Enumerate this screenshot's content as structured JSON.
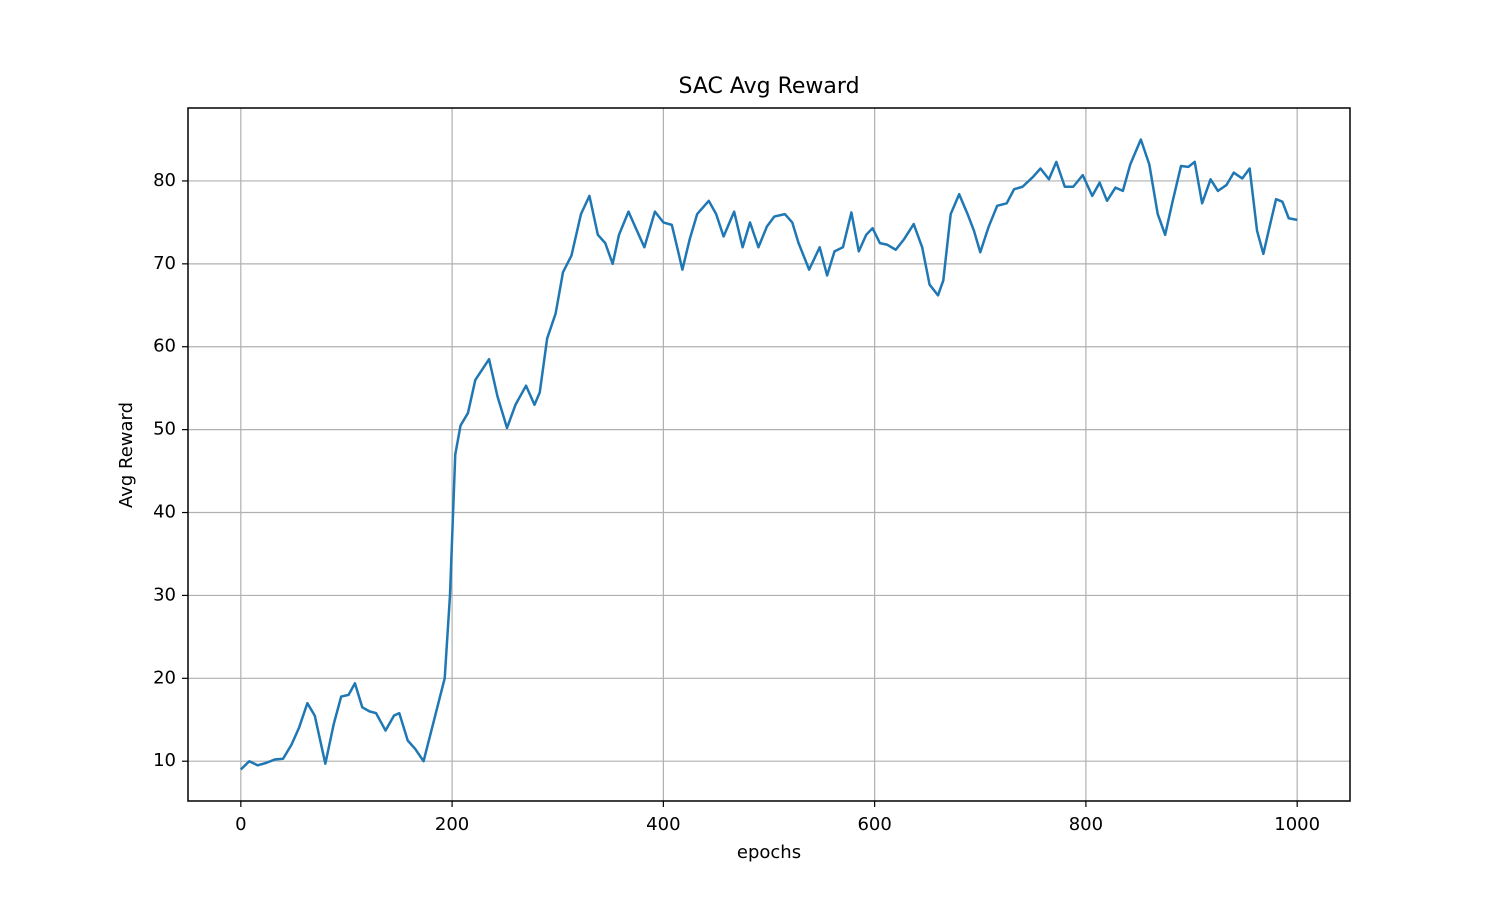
{
  "chart_data": {
    "type": "line",
    "title": "SAC Avg Reward",
    "x_label": "epochs",
    "y_label": "Avg Reward",
    "x": [
      0,
      8,
      16,
      24,
      32,
      40,
      48,
      55,
      63,
      70,
      80,
      88,
      95,
      102,
      108,
      115,
      122,
      128,
      137,
      145,
      150,
      158,
      165,
      173,
      180,
      187,
      193,
      198,
      203,
      208,
      215,
      222,
      235,
      243,
      252,
      260,
      270,
      278,
      283,
      290,
      298,
      305,
      313,
      322,
      330,
      338,
      345,
      352,
      358,
      367,
      375,
      382,
      392,
      400,
      408,
      414,
      418,
      425,
      432,
      443,
      450,
      457,
      467,
      475,
      482,
      490,
      498,
      505,
      515,
      522,
      528,
      538,
      548,
      555,
      562,
      570,
      578,
      585,
      592,
      598,
      605,
      612,
      620,
      628,
      637,
      645,
      652,
      660,
      665,
      672,
      680,
      688,
      694,
      700,
      708,
      716,
      725,
      732,
      740,
      750,
      757,
      765,
      772,
      780,
      788,
      797,
      806,
      813,
      820,
      828,
      835,
      842,
      852,
      860,
      868,
      875,
      882,
      890,
      897,
      903,
      910,
      918,
      925,
      933,
      940,
      948,
      955,
      962,
      968,
      973,
      980,
      986,
      992,
      1000
    ],
    "series": [
      {
        "name": "Avg Reward",
        "color": "#1f77b4",
        "values": [
          9,
          10,
          9.5,
          9.8,
          10.2,
          10.3,
          12,
          14,
          17,
          15.5,
          9.7,
          14.5,
          17.8,
          18,
          19.4,
          16.5,
          16,
          15.8,
          13.7,
          15.5,
          15.8,
          12.5,
          11.5,
          10,
          13.5,
          17,
          20,
          30,
          47,
          50.5,
          52,
          56,
          58.5,
          54,
          50.2,
          53,
          55.3,
          53,
          54.5,
          61,
          64,
          69,
          71,
          76,
          78.2,
          73.5,
          72.5,
          70,
          73.5,
          76.3,
          74,
          72,
          76.3,
          75,
          74.7,
          71.5,
          69.3,
          73,
          76,
          77.6,
          76,
          73.3,
          76.3,
          72,
          75,
          72,
          74.5,
          75.7,
          76,
          75,
          72.5,
          69.3,
          72,
          68.6,
          71.5,
          72,
          76.2,
          71.5,
          73.5,
          74.3,
          72.5,
          72.3,
          71.7,
          73,
          74.8,
          72,
          67.5,
          66.2,
          68,
          76,
          78.4,
          76,
          74,
          71.4,
          74.5,
          77,
          77.3,
          79,
          79.3,
          80.5,
          81.5,
          80.2,
          82.3,
          79.3,
          79.3,
          80.7,
          78.2,
          79.8,
          77.6,
          79.2,
          78.8,
          82,
          85,
          82,
          76,
          73.5,
          77.5,
          81.8,
          81.7,
          82.3,
          77.3,
          80.2,
          78.8,
          79.5,
          81,
          80.3,
          81.5,
          74,
          71.2,
          74,
          77.8,
          77.5,
          75.5,
          75.3
        ]
      }
    ],
    "xlim": [
      -50,
      1050
    ],
    "ylim": [
      5.2,
      88.8
    ],
    "xticks": [
      0,
      200,
      400,
      600,
      800,
      1000
    ],
    "yticks": [
      10,
      20,
      30,
      40,
      50,
      60,
      70,
      80
    ],
    "grid": true
  }
}
